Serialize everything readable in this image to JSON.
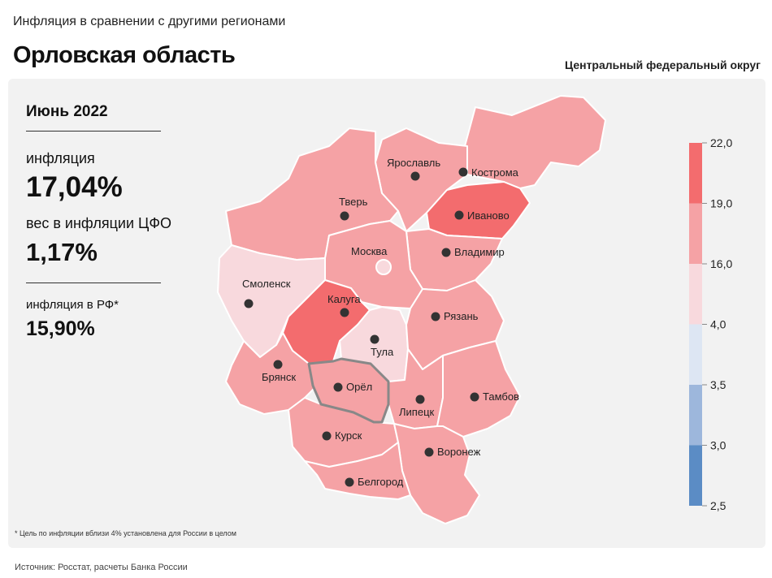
{
  "header": {
    "chart_title": "Инфляция в сравнении с другими регионами",
    "region": "Орловская область",
    "district": "Центральный федеральный округ"
  },
  "stats": {
    "period": "Июнь 2022",
    "inflation_label": "инфляция",
    "inflation_value": "17,04%",
    "weight_label": "вес в инфляции ЦФО",
    "weight_value": "1,17%",
    "rf_label": "инфляция в РФ*",
    "rf_value": "15,90%"
  },
  "footnote": "* Цель по инфляции вблизи 4% установлена для России в целом",
  "source": "Источник: Росстат, расчеты Банка России",
  "colors": {
    "band_19_22": "#f36c6e",
    "band_16_19": "#f5a2a5",
    "band_4_16": "#f8d9dd",
    "band_3_5_4": "#dde6f3",
    "band_3_3_5": "#9db7dc",
    "band_2_5_3": "#5b8cc5",
    "highlight_border": "#888888",
    "city_dot": "#333333",
    "moscow_dot": "#f8d9dd"
  },
  "legend": {
    "ticks": [
      "22,0",
      "19,0",
      "16,0",
      "4,0",
      "3,5",
      "3,0",
      "2,5"
    ],
    "bands": [
      {
        "from": 19.0,
        "to": 22.0,
        "color": "#f36c6e"
      },
      {
        "from": 16.0,
        "to": 19.0,
        "color": "#f5a2a5"
      },
      {
        "from": 4.0,
        "to": 16.0,
        "color": "#f8d9dd"
      },
      {
        "from": 3.5,
        "to": 4.0,
        "color": "#dde6f3"
      },
      {
        "from": 3.0,
        "to": 3.5,
        "color": "#9db7dc"
      },
      {
        "from": 2.5,
        "to": 3.0,
        "color": "#5b8cc5"
      }
    ]
  },
  "regions": [
    {
      "name": "Ярославль",
      "band": "16-19",
      "highlighted": false
    },
    {
      "name": "Кострома",
      "band": "16-19",
      "highlighted": false
    },
    {
      "name": "Тверь",
      "band": "16-19",
      "highlighted": false
    },
    {
      "name": "Иваново",
      "band": "19-22",
      "highlighted": false
    },
    {
      "name": "Москва",
      "band": "16-19",
      "highlighted": false
    },
    {
      "name": "Владимир",
      "band": "16-19",
      "highlighted": false
    },
    {
      "name": "Смоленск",
      "band": "4-16",
      "highlighted": false
    },
    {
      "name": "Калуга",
      "band": "19-22",
      "highlighted": false
    },
    {
      "name": "Рязань",
      "band": "16-19",
      "highlighted": false
    },
    {
      "name": "Тула",
      "band": "4-16",
      "highlighted": false
    },
    {
      "name": "Брянск",
      "band": "16-19",
      "highlighted": false
    },
    {
      "name": "Орёл",
      "band": "16-19",
      "highlighted": true
    },
    {
      "name": "Липецк",
      "band": "16-19",
      "highlighted": false
    },
    {
      "name": "Тамбов",
      "band": "16-19",
      "highlighted": false
    },
    {
      "name": "Курск",
      "band": "16-19",
      "highlighted": false
    },
    {
      "name": "Воронеж",
      "band": "16-19",
      "highlighted": false
    },
    {
      "name": "Белгород",
      "band": "16-19",
      "highlighted": false
    }
  ]
}
